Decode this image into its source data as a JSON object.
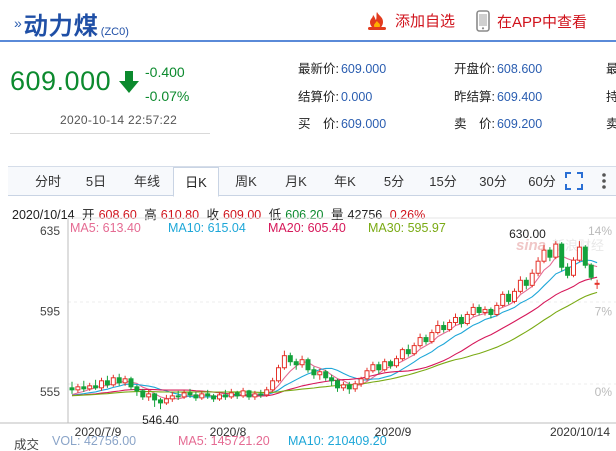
{
  "header": {
    "name": "动力煤",
    "code": "(ZC0)",
    "add_watch": "添加自选",
    "app_view": "在APP中查看"
  },
  "quote": {
    "price": "609.000",
    "change": "-0.400",
    "change_pct": "-0.07%",
    "datetime": "2020-10-14  22:57:22",
    "fields": [
      {
        "label": "最新价:",
        "value": "609.000"
      },
      {
        "label": "开盘价:",
        "value": "608.600"
      },
      {
        "label": "结算价:",
        "value": "0.000"
      },
      {
        "label": "昨结算:",
        "value": "609.400"
      },
      {
        "label": "买　价:",
        "value": "609.000"
      },
      {
        "label": "卖　价:",
        "value": "609.200"
      }
    ],
    "cut_labels": [
      "最",
      "持",
      "卖"
    ]
  },
  "tabs": [
    "分时",
    "5日",
    "年线",
    "日K",
    "周K",
    "月K",
    "年K",
    "5分",
    "15分",
    "30分",
    "60分"
  ],
  "active_tab": "日K",
  "info_row": {
    "date": "2020/10/14",
    "open_label": "开",
    "open": "608.60",
    "high_label": "高",
    "high": "610.80",
    "close_label": "收",
    "close": "609.00",
    "low_label": "低",
    "low": "606.20",
    "vol_label": "量",
    "vol": "42756",
    "pct": "0.26%"
  },
  "ma_row": [
    {
      "text": "MA5: 613.40",
      "color": "#e56b93"
    },
    {
      "text": "MA10: 615.04",
      "color": "#1ea7d8"
    },
    {
      "text": "MA20: 605.40",
      "color": "#d6185a"
    },
    {
      "text": "MA30: 595.97",
      "color": "#7aaa14"
    }
  ],
  "vol_row": {
    "label": "成交",
    "vol": "VOL: 42756.00",
    "ma5": "MA5: 145721.20",
    "ma10": "MA10: 210409.20"
  },
  "watermark": "新浪财经",
  "chart_data": {
    "type": "candlestick",
    "y_ticks": [
      "635",
      "595",
      "555"
    ],
    "y_ticks_right": [
      "14%",
      "7%",
      "0%"
    ],
    "x_ticks": [
      "2020/7/9",
      "2020/8",
      "2020/9",
      "2020/10/14"
    ],
    "high_annotation": "630.00",
    "low_annotation": "546.40",
    "ylim": [
      540,
      641
    ],
    "candles": [
      [
        557.0,
        556.0,
        560.0,
        554.0
      ],
      [
        556.0,
        557.5,
        559.0,
        554.5
      ],
      [
        557.5,
        556.5,
        560.5,
        555.0
      ],
      [
        556.5,
        558.0,
        559.5,
        555.5
      ],
      [
        558.0,
        557.0,
        561.0,
        556.0
      ],
      [
        557.0,
        560.5,
        562.0,
        555.5
      ],
      [
        560.5,
        558.5,
        563.0,
        557.0
      ],
      [
        558.5,
        562.0,
        563.5,
        557.5
      ],
      [
        562.0,
        559.5,
        564.0,
        558.0
      ],
      [
        559.5,
        561.5,
        563.0,
        558.0
      ],
      [
        561.5,
        557.5,
        562.5,
        556.0
      ],
      [
        557.5,
        555.5,
        558.5,
        553.0
      ],
      [
        555.5,
        552.5,
        556.5,
        551.0
      ],
      [
        552.5,
        554.0,
        556.0,
        550.5
      ],
      [
        554.0,
        551.0,
        554.5,
        547.5
      ],
      [
        551.0,
        549.5,
        552.0,
        546.4
      ],
      [
        549.5,
        551.5,
        553.5,
        548.5
      ],
      [
        551.5,
        553.0,
        555.0,
        550.0
      ],
      [
        553.0,
        552.5,
        555.5,
        551.0
      ],
      [
        552.5,
        554.5,
        556.0,
        551.5
      ],
      [
        554.5,
        553.5,
        556.5,
        552.0
      ],
      [
        553.5,
        552.0,
        555.0,
        550.5
      ],
      [
        552.0,
        554.0,
        555.5,
        551.0
      ],
      [
        554.0,
        553.0,
        556.0,
        551.5
      ],
      [
        553.0,
        551.5,
        554.0,
        550.0
      ],
      [
        551.5,
        553.5,
        555.0,
        550.5
      ],
      [
        553.5,
        552.5,
        556.0,
        551.0
      ],
      [
        552.5,
        554.5,
        556.5,
        551.5
      ],
      [
        554.5,
        553.0,
        555.5,
        551.5
      ],
      [
        553.0,
        555.5,
        557.0,
        552.0
      ],
      [
        555.5,
        552.5,
        556.0,
        551.0
      ],
      [
        552.5,
        554.0,
        555.5,
        551.0
      ],
      [
        554.0,
        553.5,
        556.0,
        552.0
      ],
      [
        553.5,
        556.0,
        557.5,
        552.5
      ],
      [
        556.0,
        560.5,
        562.0,
        555.0
      ],
      [
        560.5,
        567.0,
        568.5,
        559.5
      ],
      [
        567.0,
        573.0,
        575.5,
        566.0
      ],
      [
        573.0,
        570.0,
        574.5,
        568.0
      ],
      [
        570.0,
        568.5,
        571.5,
        566.0
      ],
      [
        568.5,
        571.0,
        573.0,
        567.0
      ],
      [
        571.0,
        566.0,
        572.0,
        564.5
      ],
      [
        566.0,
        563.5,
        567.5,
        561.5
      ],
      [
        563.5,
        565.0,
        566.5,
        561.0
      ],
      [
        565.0,
        562.0,
        566.0,
        560.5
      ],
      [
        562.0,
        560.5,
        563.5,
        558.0
      ],
      [
        560.5,
        557.0,
        561.5,
        555.0
      ],
      [
        557.0,
        558.5,
        560.0,
        555.5
      ],
      [
        558.5,
        556.5,
        560.0,
        554.0
      ],
      [
        556.5,
        559.0,
        560.5,
        555.0
      ],
      [
        559.0,
        561.5,
        562.5,
        557.5
      ],
      [
        561.5,
        565.5,
        567.0,
        560.5
      ],
      [
        565.5,
        568.5,
        570.0,
        564.5
      ],
      [
        568.5,
        566.0,
        570.0,
        564.0
      ],
      [
        566.0,
        570.0,
        571.5,
        565.0
      ],
      [
        570.0,
        568.0,
        571.0,
        566.5
      ],
      [
        568.0,
        571.5,
        573.0,
        567.0
      ],
      [
        571.5,
        576.0,
        577.0,
        570.5
      ],
      [
        576.0,
        574.0,
        578.5,
        572.5
      ],
      [
        574.0,
        578.0,
        579.5,
        573.0
      ],
      [
        578.0,
        582.0,
        584.0,
        577.0
      ],
      [
        582.0,
        580.0,
        583.5,
        578.5
      ],
      [
        580.0,
        584.5,
        586.0,
        579.0
      ],
      [
        584.5,
        588.0,
        590.5,
        583.5
      ],
      [
        588.0,
        586.0,
        590.0,
        584.5
      ],
      [
        586.0,
        589.5,
        591.0,
        585.0
      ],
      [
        589.5,
        592.0,
        594.0,
        588.0
      ],
      [
        592.0,
        589.0,
        593.5,
        587.0
      ],
      [
        589.0,
        593.5,
        595.0,
        588.0
      ],
      [
        593.5,
        597.0,
        599.0,
        592.5
      ],
      [
        597.0,
        594.5,
        598.5,
        593.0
      ],
      [
        594.5,
        596.0,
        597.5,
        593.0
      ],
      [
        596.0,
        593.5,
        597.0,
        591.5
      ],
      [
        593.5,
        598.0,
        599.5,
        592.5
      ],
      [
        598.0,
        603.5,
        605.0,
        597.0
      ],
      [
        603.5,
        600.0,
        605.5,
        598.5
      ],
      [
        600.0,
        605.0,
        606.5,
        599.0
      ],
      [
        605.0,
        610.5,
        612.5,
        604.0
      ],
      [
        610.5,
        608.0,
        612.0,
        606.0
      ],
      [
        608.0,
        614.0,
        616.0,
        607.0
      ],
      [
        614.0,
        620.0,
        622.0,
        612.5
      ],
      [
        620.0,
        625.5,
        628.0,
        619.0
      ],
      [
        625.5,
        622.0,
        627.0,
        620.0
      ],
      [
        622.0,
        628.5,
        630.0,
        621.0
      ],
      [
        628.5,
        617.0,
        629.5,
        615.0
      ],
      [
        617.0,
        613.0,
        619.0,
        611.5
      ],
      [
        613.0,
        620.5,
        622.0,
        612.0
      ],
      [
        620.5,
        627.0,
        630.0,
        619.5
      ],
      [
        627.0,
        618.0,
        628.0,
        616.5
      ],
      [
        618.0,
        612.0,
        619.0,
        610.5
      ],
      [
        608.6,
        609.0,
        610.8,
        606.2
      ]
    ]
  }
}
